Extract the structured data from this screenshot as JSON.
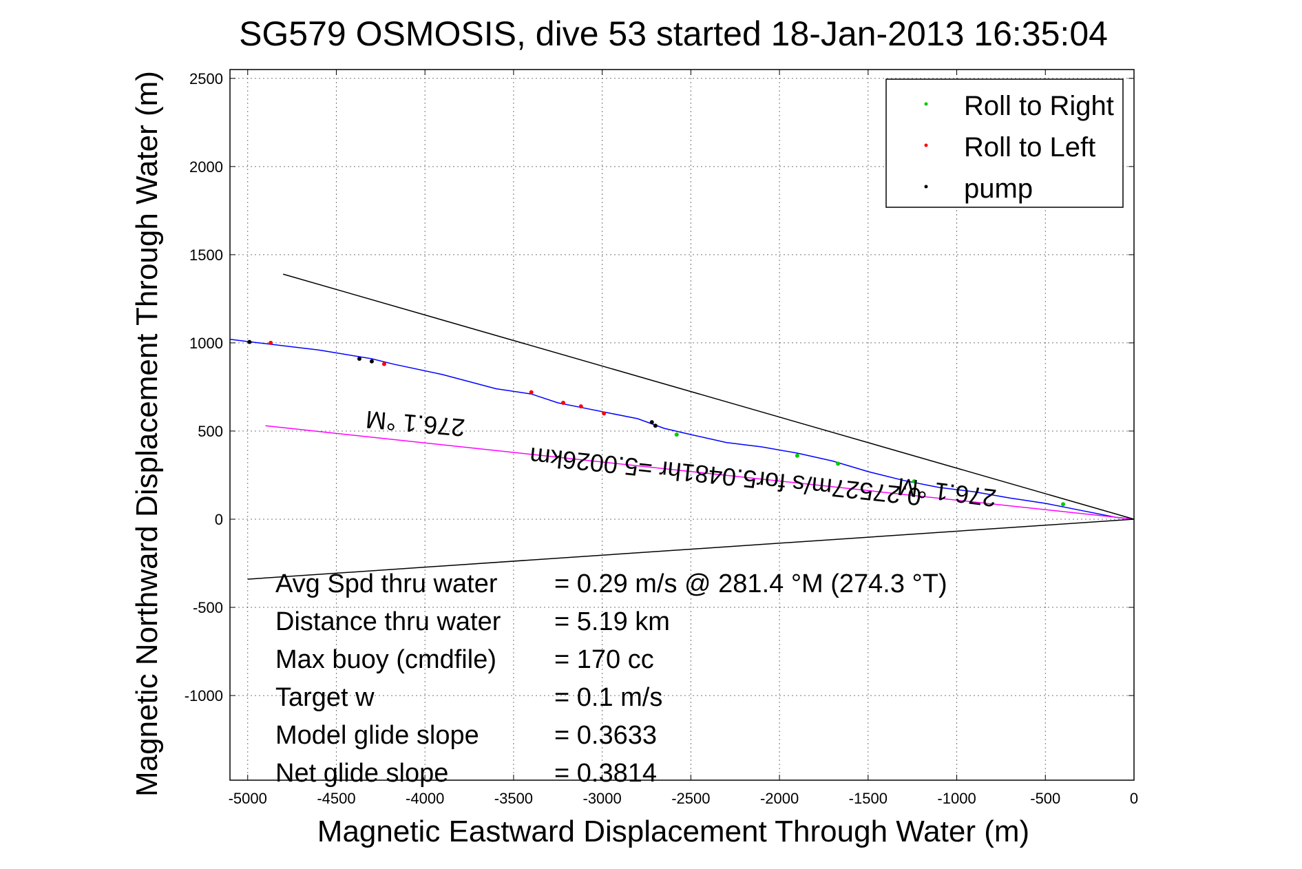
{
  "chart_data": {
    "type": "line",
    "title": "SG579 OSMOSIS, dive 53 started 18-Jan-2013 16:35:04",
    "xlabel": "Magnetic Eastward Displacement Through Water (m)",
    "ylabel": "Magnetic Northward Displacement Through Water (m)",
    "xlim": [
      -5100,
      0
    ],
    "ylim": [
      -1480,
      2550
    ],
    "grid": true,
    "xticks": [
      -5000,
      -4500,
      -4000,
      -3500,
      -3000,
      -2500,
      -2000,
      -1500,
      -1000,
      -500,
      0
    ],
    "yticks": [
      -1000,
      -500,
      0,
      500,
      1000,
      1500,
      2000,
      2500
    ],
    "xtick_labels": [
      "-5000",
      "-4500",
      "-4000",
      "-3500",
      "-3000",
      "-2500",
      "-2000",
      "-1500",
      "-1000",
      "-500",
      "0"
    ],
    "ytick_labels": [
      "-1000",
      "-500",
      "0",
      "500",
      "1000",
      "1500",
      "2000",
      "2500"
    ],
    "legend": {
      "position": "top-right",
      "entries": [
        {
          "label": "Roll to Right",
          "color": "#00cc00"
        },
        {
          "label": "Roll to Left",
          "color": "#ff0000"
        },
        {
          "label": "pump",
          "color": "#000000"
        }
      ]
    },
    "series": [
      {
        "color": "#0000ff",
        "x": [
          -5100,
          -4980,
          -4600,
          -4300,
          -4180,
          -3900,
          -3600,
          -3400,
          -3250,
          -3100,
          -2950,
          -2800,
          -2650,
          -2500,
          -2300,
          -2100,
          -1900,
          -1700,
          -1500,
          -1300,
          -1100,
          -900,
          -700,
          -500,
          -300,
          -100,
          0
        ],
        "y": [
          1020,
          1005,
          960,
          910,
          880,
          820,
          740,
          710,
          660,
          630,
          600,
          570,
          515,
          480,
          435,
          410,
          375,
          330,
          270,
          220,
          180,
          155,
          120,
          90,
          50,
          10,
          0
        ]
      },
      {
        "color": "#ff00ff",
        "x": [
          -4900,
          0
        ],
        "y": [
          530,
          0
        ]
      },
      {
        "color": "#000000",
        "x": [
          -4800,
          0,
          -5000
        ],
        "y": [
          1390,
          0,
          -340
        ]
      }
    ],
    "markers": {
      "roll_right": {
        "color": "#00cc00",
        "x": [
          -2580,
          -1900,
          -1670,
          -1240,
          -400
        ],
        "y": [
          480,
          360,
          315,
          215,
          85
        ]
      },
      "roll_left": {
        "color": "#ff0000",
        "x": [
          -4230,
          -3400,
          -3220,
          -3120,
          -2990,
          -4870
        ],
        "y": [
          880,
          720,
          660,
          640,
          600,
          1000
        ]
      },
      "pump": {
        "color": "#000000",
        "x": [
          -4370,
          -4300,
          -2720,
          -2700,
          -4990
        ],
        "y": [
          910,
          895,
          550,
          530,
          1005
        ]
      }
    },
    "annotations": [
      {
        "text": "276.1 °M",
        "x": -4050,
        "y": 590,
        "rotate": 185
      },
      {
        "text": "276.1 °M",
        "x": -1050,
        "y": 200,
        "rotate": 187
      },
      {
        "text": "0.27527m/s for5.0481hr =5.0026km",
        "x": -2300,
        "y": 290,
        "rotate": 186
      }
    ],
    "stats": [
      {
        "label": "Avg Spd thru water",
        "value": "=  0.29 m/s @ 281.4 °M (274.3 °T)"
      },
      {
        "label": "Distance thru water",
        "value": "=  5.19 km"
      },
      {
        "label": "Max buoy (cmdfile)",
        "value": "= 170 cc"
      },
      {
        "label": "Target w",
        "value": "= 0.1 m/s"
      },
      {
        "label": "Model glide slope",
        "value": "= 0.3633"
      },
      {
        "label": "Net glide slope",
        "value": "= 0.3814"
      }
    ]
  }
}
